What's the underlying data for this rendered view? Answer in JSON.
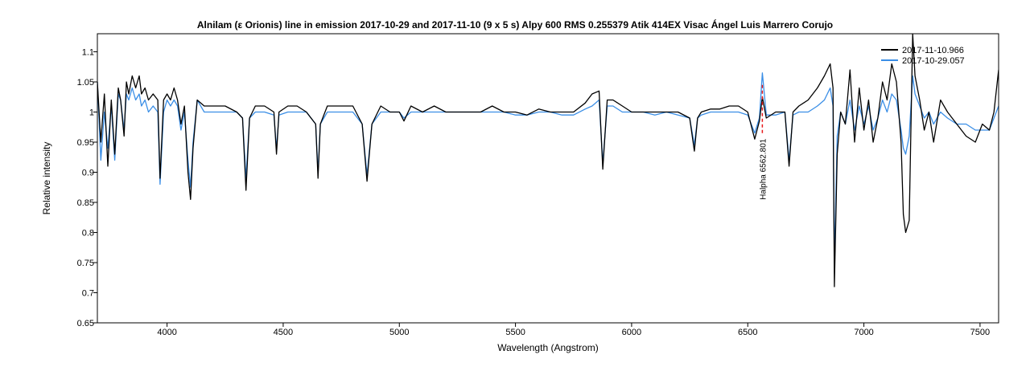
{
  "chart_data": {
    "type": "line",
    "title": "Alnilam (ε Orionis)   line in emission  2017-10-29  and 2017-11-10   (9 x 5 s)    Alpy 600    RMS 0.255379    Atik 414EX   Visac    Ángel Luis Marrero Corujo",
    "xlabel": "Wavelength (Angstrom)",
    "ylabel": "Relative intensity",
    "xlim": [
      3700,
      7580
    ],
    "ylim": [
      0.65,
      1.13
    ],
    "x_ticks": [
      4000,
      4500,
      5000,
      5500,
      6000,
      6500,
      7000,
      7500
    ],
    "y_ticks": [
      0.65,
      0.7,
      0.75,
      0.8,
      0.85,
      0.9,
      0.95,
      1,
      1.05,
      1.1
    ],
    "x_tick_labels": [
      "4000",
      "4500",
      "5000",
      "5500",
      "6000",
      "6500",
      "7000",
      "7500"
    ],
    "y_tick_labels": [
      "0.65",
      "0.7",
      "0.75",
      "0.8",
      "0.85",
      "0.9",
      "0.95",
      "1",
      "1.05",
      "1.1"
    ],
    "grid": false,
    "legend_position": "top-right",
    "annotation": {
      "text": "Halpha 6562.801",
      "x": 6562.801,
      "color": "#e8191b"
    },
    "series": [
      {
        "name": "2017-11-10.966",
        "color": "#000000",
        "x": [
          3700,
          3715,
          3730,
          3745,
          3760,
          3775,
          3790,
          3800,
          3815,
          3825,
          3835,
          3850,
          3865,
          3880,
          3890,
          3905,
          3920,
          3940,
          3960,
          3970,
          3985,
          4000,
          4015,
          4030,
          4045,
          4060,
          4075,
          4090,
          4101,
          4112,
          4130,
          4160,
          4200,
          4250,
          4300,
          4325,
          4340,
          4355,
          4380,
          4420,
          4460,
          4471,
          4482,
          4520,
          4560,
          4600,
          4640,
          4650,
          4660,
          4690,
          4720,
          4760,
          4800,
          4840,
          4861,
          4882,
          4920,
          4960,
          5000,
          5020,
          5050,
          5100,
          5150,
          5200,
          5250,
          5300,
          5350,
          5400,
          5450,
          5500,
          5550,
          5600,
          5650,
          5700,
          5750,
          5800,
          5830,
          5860,
          5876,
          5895,
          5920,
          5960,
          6000,
          6050,
          6100,
          6150,
          6200,
          6250,
          6270,
          6284,
          6300,
          6340,
          6380,
          6420,
          6460,
          6500,
          6530,
          6550,
          6563,
          6580,
          6620,
          6660,
          6678,
          6695,
          6720,
          6760,
          6800,
          6830,
          6855,
          6867,
          6873,
          6885,
          6900,
          6920,
          6940,
          6960,
          6980,
          7000,
          7020,
          7040,
          7060,
          7080,
          7100,
          7120,
          7140,
          7160,
          7170,
          7180,
          7195,
          7210,
          7220,
          7240,
          7260,
          7280,
          7300,
          7330,
          7360,
          7400,
          7440,
          7480,
          7510,
          7540,
          7560,
          7580
        ],
        "values": [
          1.05,
          0.95,
          1.03,
          0.91,
          1.02,
          0.93,
          1.04,
          1.02,
          0.96,
          1.05,
          1.03,
          1.06,
          1.04,
          1.06,
          1.03,
          1.04,
          1.02,
          1.03,
          1.02,
          0.89,
          1.02,
          1.03,
          1.02,
          1.04,
          1.02,
          0.98,
          1.01,
          0.9,
          0.855,
          0.94,
          1.02,
          1.01,
          1.01,
          1.01,
          1.0,
          0.99,
          0.87,
          0.99,
          1.01,
          1.01,
          1.0,
          0.93,
          1.0,
          1.01,
          1.01,
          1.0,
          0.98,
          0.89,
          0.98,
          1.01,
          1.01,
          1.01,
          1.01,
          0.98,
          0.885,
          0.98,
          1.01,
          1.0,
          1.0,
          0.985,
          1.01,
          1.0,
          1.01,
          1.0,
          1.0,
          1.0,
          1.0,
          1.01,
          1.0,
          1.0,
          0.995,
          1.005,
          1.0,
          1.0,
          1.0,
          1.015,
          1.03,
          1.035,
          0.905,
          1.02,
          1.02,
          1.01,
          1.0,
          1.0,
          1.0,
          1.0,
          1.0,
          0.99,
          0.935,
          0.99,
          1.0,
          1.005,
          1.005,
          1.01,
          1.01,
          1.0,
          0.955,
          0.985,
          1.025,
          0.99,
          1.0,
          1.0,
          0.91,
          1.0,
          1.01,
          1.02,
          1.04,
          1.06,
          1.08,
          1.04,
          0.71,
          0.93,
          1.0,
          0.98,
          1.07,
          0.95,
          1.04,
          0.97,
          1.02,
          0.95,
          0.99,
          1.05,
          1.02,
          1.08,
          1.05,
          0.95,
          0.83,
          0.8,
          0.82,
          1.13,
          1.06,
          1.02,
          0.97,
          1.0,
          0.95,
          1.02,
          1.0,
          0.98,
          0.96,
          0.95,
          0.98,
          0.97,
          1.0,
          1.07
        ]
      },
      {
        "name": "2017-10-29.057",
        "color": "#3a8ee6",
        "x": [
          3700,
          3715,
          3730,
          3745,
          3760,
          3775,
          3790,
          3800,
          3815,
          3825,
          3835,
          3850,
          3865,
          3880,
          3890,
          3905,
          3920,
          3940,
          3960,
          3970,
          3985,
          4000,
          4015,
          4030,
          4045,
          4060,
          4075,
          4090,
          4101,
          4112,
          4130,
          4160,
          4200,
          4250,
          4300,
          4325,
          4340,
          4355,
          4380,
          4420,
          4460,
          4471,
          4482,
          4520,
          4560,
          4600,
          4640,
          4650,
          4660,
          4690,
          4720,
          4760,
          4800,
          4840,
          4861,
          4882,
          4920,
          4960,
          5000,
          5020,
          5050,
          5100,
          5150,
          5200,
          5250,
          5300,
          5350,
          5400,
          5450,
          5500,
          5550,
          5600,
          5650,
          5700,
          5750,
          5800,
          5830,
          5860,
          5876,
          5895,
          5920,
          5960,
          6000,
          6050,
          6100,
          6150,
          6200,
          6250,
          6270,
          6284,
          6300,
          6340,
          6380,
          6420,
          6460,
          6500,
          6530,
          6550,
          6563,
          6580,
          6620,
          6660,
          6678,
          6695,
          6720,
          6760,
          6800,
          6830,
          6855,
          6867,
          6873,
          6885,
          6900,
          6920,
          6940,
          6960,
          6980,
          7000,
          7020,
          7040,
          7060,
          7080,
          7100,
          7120,
          7140,
          7160,
          7170,
          7180,
          7195,
          7210,
          7220,
          7240,
          7260,
          7280,
          7300,
          7330,
          7360,
          7400,
          7440,
          7480,
          7510,
          7540,
          7560,
          7580
        ],
        "values": [
          1.05,
          0.92,
          1.0,
          0.94,
          1.01,
          0.92,
          1.03,
          1.02,
          0.97,
          1.03,
          1.02,
          1.04,
          1.02,
          1.03,
          1.01,
          1.02,
          1.0,
          1.01,
          1.0,
          0.88,
          1.0,
          1.02,
          1.01,
          1.02,
          1.01,
          0.97,
          1.0,
          0.92,
          0.875,
          0.95,
          1.02,
          1.0,
          1.0,
          1.0,
          1.0,
          0.99,
          0.89,
          0.99,
          1.0,
          1.0,
          0.995,
          0.94,
          0.995,
          1.0,
          1.0,
          1.0,
          0.98,
          0.9,
          0.98,
          1.0,
          1.0,
          1.0,
          1.0,
          0.98,
          0.895,
          0.98,
          1.0,
          1.0,
          1.0,
          0.99,
          1.0,
          1.0,
          1.0,
          1.0,
          1.0,
          1.0,
          1.0,
          1.0,
          1.0,
          0.995,
          0.995,
          1.0,
          1.0,
          0.995,
          0.995,
          1.005,
          1.01,
          1.02,
          0.915,
          1.01,
          1.01,
          1.0,
          1.0,
          1.0,
          0.995,
          1.0,
          0.995,
          0.99,
          0.945,
          0.99,
          0.995,
          1.0,
          1.0,
          1.0,
          1.0,
          0.995,
          0.965,
          0.99,
          1.065,
          0.995,
          0.995,
          1.0,
          0.92,
          0.995,
          1.0,
          1.0,
          1.01,
          1.02,
          1.04,
          1.01,
          0.75,
          0.96,
          1.0,
          0.98,
          1.02,
          0.97,
          1.01,
          0.98,
          1.01,
          0.97,
          0.99,
          1.02,
          1.0,
          1.03,
          1.02,
          0.97,
          0.94,
          0.93,
          0.96,
          1.06,
          1.03,
          1.01,
          0.99,
          1.0,
          0.98,
          1.0,
          0.99,
          0.98,
          0.98,
          0.97,
          0.97,
          0.97,
          0.99,
          1.01
        ]
      }
    ]
  }
}
